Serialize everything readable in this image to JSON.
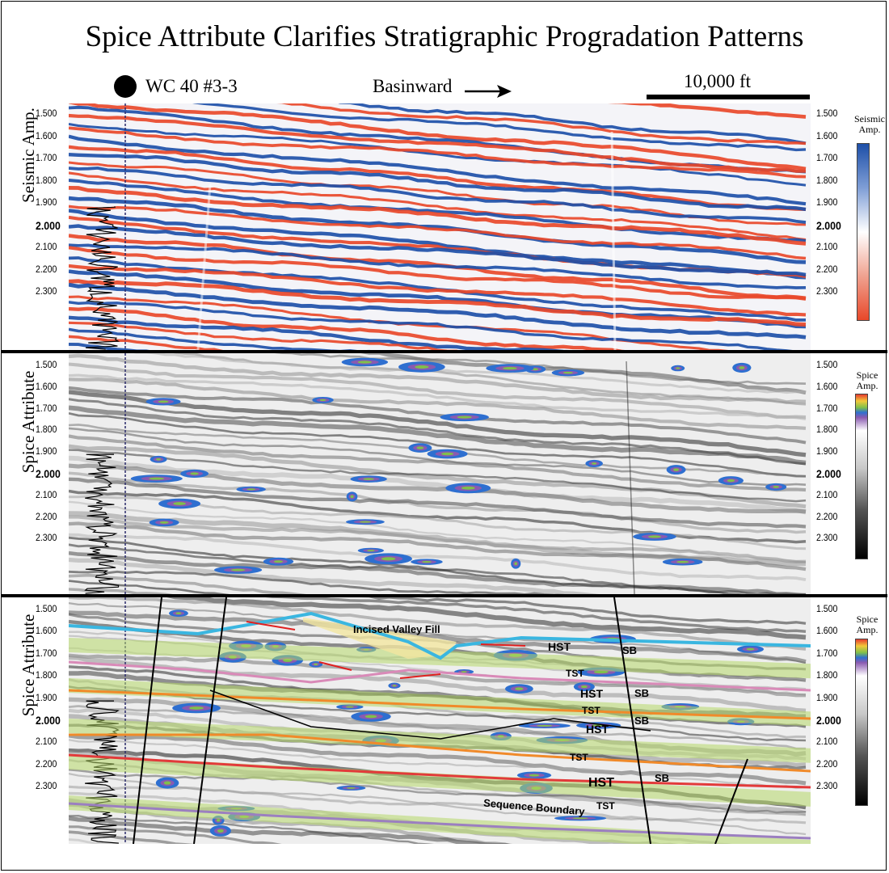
{
  "title": "Spice Attribute Clarifies Stratigraphic Progradation Patterns",
  "header": {
    "well_label": "WC 40 #3-3",
    "direction_label": "Basinward",
    "scale_label": "10,000 ft"
  },
  "time_ticks": [
    "1.500",
    "1.600",
    "1.700",
    "1.800",
    "1.900",
    "2.000",
    "2.100",
    "2.200",
    "2.300"
  ],
  "panels": [
    {
      "label": "Seismic Amp.",
      "colorbar_title": "Seismic Amp.",
      "colormap": [
        "#1d4fa8",
        "#7f9ed6",
        "#ffffff",
        "#f0a290",
        "#e8482a"
      ]
    },
    {
      "label": "Spice Attribute",
      "colorbar_title": "Spice Amp.",
      "colormap": [
        "#e63b2e",
        "#f3c93a",
        "#7fc04a",
        "#2e6fd0",
        "#8a5ab0",
        "#ffffff",
        "#b8b8b8",
        "#555555",
        "#000000"
      ]
    },
    {
      "label": "Spice Attribute",
      "colorbar_title": "Spice Amp.",
      "colormap": [
        "#e63b2e",
        "#f3c93a",
        "#7fc04a",
        "#2e6fd0",
        "#8a5ab0",
        "#ffffff",
        "#b8b8b8",
        "#555555",
        "#000000"
      ]
    }
  ],
  "interpretation": {
    "incised_valley": "Incised Valley Fill",
    "sequence_boundary": "Sequence Boundary",
    "hst": "HST",
    "tst": "TST",
    "sb": "SB"
  },
  "colors": {
    "seismic_positive": "#e8482a",
    "seismic_negative": "#1d4fa8",
    "horizon_blue": "#3ab6e0",
    "horizon_pink": "#d98ab8",
    "horizon_orange": "#f08a2a",
    "horizon_red": "#e23a3a",
    "horizon_purple": "#9b7fc0",
    "tst_fill": "#b6d86a",
    "valley_fill": "#f2e6a0"
  }
}
